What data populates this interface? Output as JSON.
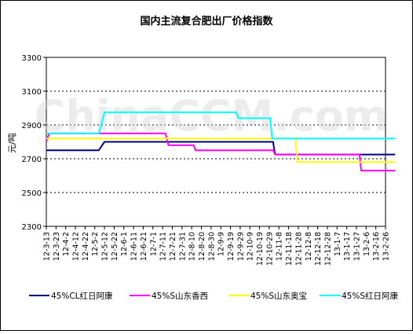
{
  "chart_data": {
    "type": "line",
    "title": "国内主流复合肥出厂价格指数",
    "ylabel": "元/吨",
    "xlabel": "",
    "ylim": [
      2300,
      3300
    ],
    "yticks": [
      2300,
      2500,
      2700,
      2900,
      3100,
      3300
    ],
    "grid": true,
    "legend_position": "bottom",
    "watermark": "ChinaCCM.com",
    "categories": [
      "12-3-13",
      "12-3-23",
      "12-4-2",
      "12-4-12",
      "12-4-22",
      "12-5-2",
      "12-5-12",
      "12-5-22",
      "12-6-1",
      "12-6-11",
      "12-6-21",
      "12-7-1",
      "12-7-11",
      "12-7-21",
      "12-7-31",
      "12-8-10",
      "12-8-20",
      "12-8-30",
      "12-9-9",
      "12-9-19",
      "12-9-29",
      "12-10-9",
      "12-10-19",
      "12-10-29",
      "12-11-8",
      "12-11-18",
      "12-11-28",
      "12-12-8",
      "12-12-18",
      "12-12-28",
      "13-1-7",
      "13-1-17",
      "13-1-27",
      "13-2-6",
      "13-2-16",
      "13-2-26"
    ],
    "series": [
      {
        "name": "45%CL红日阿康",
        "color": "#000080",
        "points": [
          [
            0,
            2750
          ],
          [
            5.4,
            2750
          ],
          [
            6,
            2800
          ],
          [
            23.4,
            2800
          ],
          [
            23.6,
            2725
          ],
          [
            36,
            2725
          ]
        ]
      },
      {
        "name": "45%S山东香西",
        "color": "#ff00ff",
        "points": [
          [
            0,
            2800
          ],
          [
            0.3,
            2850
          ],
          [
            12.3,
            2850
          ],
          [
            12.6,
            2780
          ],
          [
            15.2,
            2780
          ],
          [
            15.4,
            2750
          ],
          [
            23.4,
            2750
          ],
          [
            23.6,
            2725
          ],
          [
            32.3,
            2725
          ],
          [
            32.5,
            2630
          ],
          [
            36,
            2630
          ]
        ]
      },
      {
        "name": "45%S山东奥宝",
        "color": "#ffff00",
        "points": [
          [
            0,
            2820
          ],
          [
            25.7,
            2820
          ],
          [
            25.9,
            2680
          ],
          [
            36,
            2680
          ]
        ]
      },
      {
        "name": "45%S红日阿康",
        "color": "#00ffff",
        "points": [
          [
            0,
            2850
          ],
          [
            5.4,
            2850
          ],
          [
            6,
            2975
          ],
          [
            19.6,
            2975
          ],
          [
            19.8,
            2940
          ],
          [
            23.1,
            2940
          ],
          [
            23.3,
            2820
          ],
          [
            36,
            2820
          ]
        ]
      }
    ]
  }
}
